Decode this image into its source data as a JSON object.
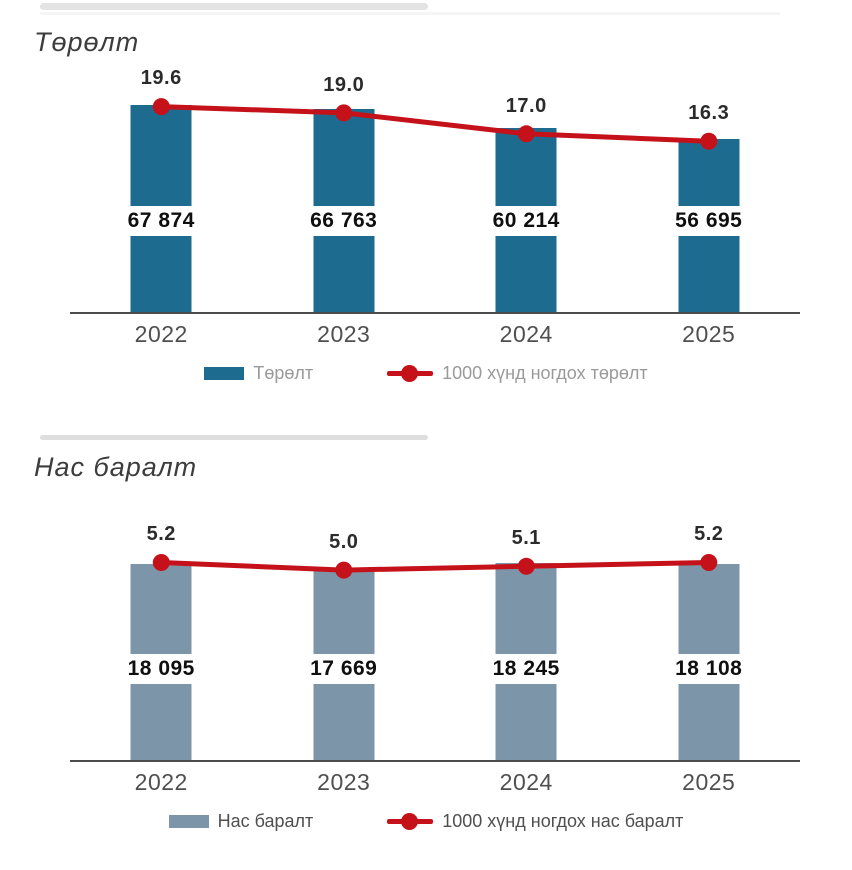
{
  "chart_data": [
    {
      "type": "bar+line",
      "title": "Төрөлт",
      "categories": [
        "2022",
        "2023",
        "2024",
        "2025"
      ],
      "series": [
        {
          "name": "Төрөлт",
          "type": "bar",
          "values": [
            67874,
            66763,
            60214,
            56695
          ],
          "labels": [
            "67 874",
            "66 763",
            "60 214",
            "56 695"
          ],
          "color": "#1d6b8f"
        },
        {
          "name": "1000 хүнд ногдох төрөлт",
          "type": "line",
          "values": [
            19.6,
            19.0,
            17.0,
            16.3
          ],
          "labels": [
            "19.6",
            "19.0",
            "17.0",
            "16.3"
          ],
          "color": "#c5121a"
        }
      ],
      "ylim_bar": [
        0,
        68000
      ],
      "ylim_line": [
        0,
        19.75
      ],
      "legend_position": "bottom",
      "grid": "off",
      "y_axis": "hidden"
    },
    {
      "type": "bar+line",
      "title": "Нас баралт",
      "categories": [
        "2022",
        "2023",
        "2024",
        "2025"
      ],
      "series": [
        {
          "name": "Нас баралт",
          "type": "bar",
          "values": [
            18095,
            17669,
            18245,
            18108
          ],
          "labels": [
            "18 095",
            "17 669",
            "18 245",
            "18 108"
          ],
          "color": "#7c95a8"
        },
        {
          "name": "1000 хүнд ногдох нас баралт",
          "type": "line",
          "values": [
            5.2,
            5.0,
            5.1,
            5.2
          ],
          "labels": [
            "5.2",
            "5.0",
            "5.1",
            "5.2"
          ],
          "color": "#c5121a"
        }
      ],
      "ylim_bar": [
        0,
        19200
      ],
      "ylim_line": [
        0,
        5.45
      ],
      "legend_position": "bottom",
      "grid": "off",
      "y_axis": "hidden"
    }
  ],
  "theme": {
    "axis_color": "#4d4d4d",
    "divider_color": "#e3e3e3",
    "background": "#ffffff"
  }
}
